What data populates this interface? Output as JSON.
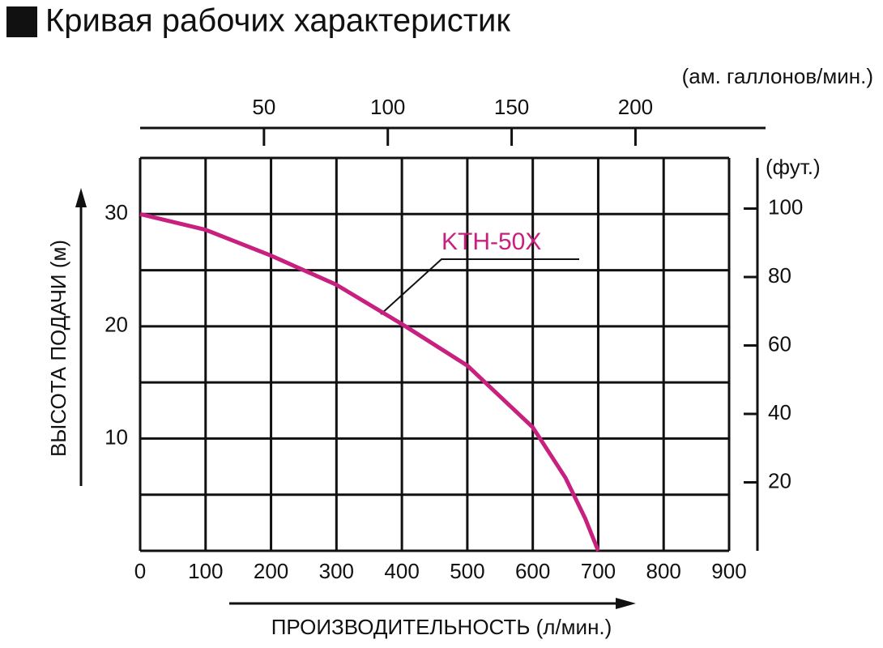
{
  "chart_data": {
    "type": "line",
    "title": "Кривая рабочих характеристик",
    "xlabel": "ПРОИЗВОДИТЕЛЬНОСТЬ (л/мин.)",
    "ylabel": "ВЫСОТА ПОДАЧИ (м)",
    "x2label": "(ам. галлонов/мин.)",
    "y2label": "(фут.)",
    "x": [
      0,
      100,
      200,
      300,
      400,
      500,
      600,
      650,
      680,
      700
    ],
    "series": [
      {
        "name": "KTH-50X",
        "color": "#c8207e",
        "values": [
          30,
          28.6,
          26.3,
          23.7,
          20.2,
          16.5,
          11,
          6.5,
          2.9,
          0
        ]
      }
    ],
    "xlim": [
      0,
      900
    ],
    "xticks": [
      0,
      100,
      200,
      300,
      400,
      500,
      600,
      700,
      800,
      900
    ],
    "ylim": [
      0,
      35
    ],
    "yticks": [
      10,
      20,
      30
    ],
    "ygrid": [
      0,
      5,
      10,
      15,
      20,
      25,
      30,
      35
    ],
    "x2lim": [
      0,
      237.8
    ],
    "x2ticks": [
      50,
      100,
      150,
      200
    ],
    "y2lim": [
      0,
      114.8
    ],
    "y2ticks": [
      20,
      40,
      60,
      80,
      100
    ],
    "grid": true
  }
}
